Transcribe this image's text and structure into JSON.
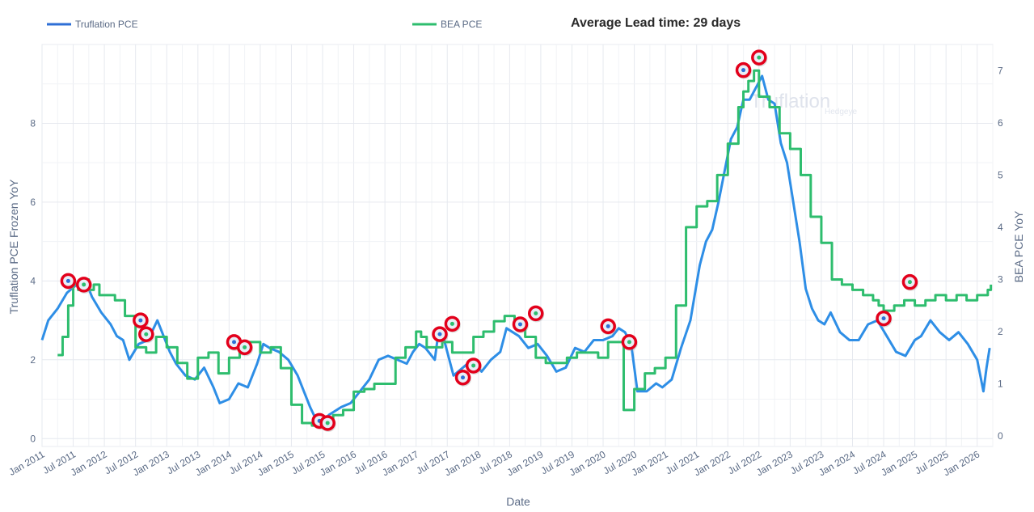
{
  "chart_data": {
    "type": "line",
    "title": "Average Lead time: 29 days",
    "xlabel": "Date",
    "ylabel_left": "Truflation PCE Frozen YoY",
    "ylabel_right": "BEA PCE YoY",
    "ylim_left": [
      -0.2,
      10
    ],
    "ylim_right": [
      -0.2,
      7.5
    ],
    "yticks_left": [
      0,
      2,
      4,
      6,
      8
    ],
    "yticks_right": [
      0,
      1,
      2,
      3,
      4,
      5,
      6,
      7
    ],
    "grid": true,
    "legend_position": "top",
    "watermark": "Truflation",
    "watermark_sub": "Hedgeye",
    "x_ticks": [
      "Jan 2011",
      "Jul 2011",
      "Jan 2012",
      "Jul 2012",
      "Jan 2013",
      "Jul 2013",
      "Jan 2014",
      "Jul 2014",
      "Jan 2015",
      "Jul 2015",
      "Jan 2016",
      "Jul 2016",
      "Jan 2017",
      "Jul 2017",
      "Jan 2018",
      "Jul 2018",
      "Jan 2019",
      "Jul 2019",
      "Jan 2020",
      "Jul 2020",
      "Jan 2021",
      "Jul 2021",
      "Jan 2022",
      "Jul 2022",
      "Jan 2023",
      "Jul 2023",
      "Jan 2024",
      "Jul 2024",
      "Jan 2025",
      "Jul 2025",
      "Jan 2026"
    ],
    "series": [
      {
        "name": "Truflation PCE",
        "color": "#2e8ee6",
        "axis": "left",
        "x": [
          2011.0,
          2011.1,
          2011.25,
          2011.4,
          2011.55,
          2011.7,
          2011.8,
          2011.95,
          2012.1,
          2012.2,
          2012.3,
          2012.4,
          2012.55,
          2012.7,
          2012.85,
          2012.95,
          2013.05,
          2013.15,
          2013.3,
          2013.45,
          2013.6,
          2013.75,
          2013.85,
          2014.0,
          2014.15,
          2014.3,
          2014.45,
          2014.55,
          2014.65,
          2014.8,
          2014.95,
          2015.1,
          2015.2,
          2015.3,
          2015.45,
          2015.6,
          2015.8,
          2015.95,
          2016.1,
          2016.25,
          2016.4,
          2016.55,
          2016.7,
          2016.85,
          2016.95,
          2017.05,
          2017.15,
          2017.3,
          2017.35,
          2017.45,
          2017.6,
          2017.75,
          2017.9,
          2018.05,
          2018.2,
          2018.35,
          2018.45,
          2018.55,
          2018.65,
          2018.8,
          2018.95,
          2019.1,
          2019.25,
          2019.4,
          2019.55,
          2019.7,
          2019.85,
          2020.0,
          2020.15,
          2020.25,
          2020.35,
          2020.45,
          2020.55,
          2020.7,
          2020.85,
          2020.95,
          2021.1,
          2021.25,
          2021.4,
          2021.55,
          2021.65,
          2021.75,
          2021.85,
          2021.95,
          2022.05,
          2022.15,
          2022.25,
          2022.35,
          2022.45,
          2022.55,
          2022.65,
          2022.75,
          2022.85,
          2022.95,
          2023.05,
          2023.15,
          2023.25,
          2023.35,
          2023.45,
          2023.55,
          2023.65,
          2023.8,
          2023.95,
          2024.1,
          2024.25,
          2024.4,
          2024.55,
          2024.7,
          2024.85,
          2025.0,
          2025.1,
          2025.25,
          2025.4,
          2025.55,
          2025.7,
          2025.85,
          2026.0,
          2026.1,
          2026.15,
          2026.2
        ],
        "values": [
          2.5,
          3.0,
          3.3,
          3.7,
          3.9,
          4.0,
          3.6,
          3.2,
          2.9,
          2.6,
          2.5,
          2.0,
          2.4,
          2.5,
          3.0,
          2.6,
          2.2,
          1.9,
          1.6,
          1.5,
          1.8,
          1.3,
          0.9,
          1.0,
          1.4,
          1.3,
          1.9,
          2.4,
          2.3,
          2.2,
          2.0,
          1.6,
          1.2,
          0.8,
          0.3,
          0.6,
          0.8,
          0.9,
          1.2,
          1.5,
          2.0,
          2.1,
          2.0,
          1.9,
          2.2,
          2.4,
          2.3,
          2.0,
          2.6,
          2.5,
          1.6,
          1.8,
          2.0,
          1.7,
          2.0,
          2.2,
          2.8,
          2.7,
          2.6,
          2.3,
          2.4,
          2.1,
          1.7,
          1.8,
          2.3,
          2.2,
          2.5,
          2.5,
          2.6,
          2.8,
          2.7,
          2.4,
          1.2,
          1.2,
          1.4,
          1.3,
          1.5,
          2.3,
          3.0,
          4.4,
          5.0,
          5.3,
          6.0,
          6.8,
          7.6,
          7.9,
          8.6,
          8.6,
          8.9,
          9.2,
          8.6,
          8.5,
          7.5,
          7.0,
          6.0,
          5.0,
          3.8,
          3.3,
          3.0,
          2.9,
          3.2,
          2.7,
          2.5,
          2.5,
          2.9,
          3.0,
          2.6,
          2.2,
          2.1,
          2.5,
          2.6,
          3.0,
          2.7,
          2.5,
          2.7,
          2.4,
          2.0,
          1.2,
          1.8,
          2.3
        ]
      },
      {
        "name": "BEA PCE",
        "color": "#2ebd6e",
        "axis": "right",
        "x": [
          2011.25,
          2011.33,
          2011.42,
          2011.5,
          2011.58,
          2011.67,
          2011.75,
          2011.83,
          2011.92,
          2012.0,
          2012.17,
          2012.33,
          2012.5,
          2012.67,
          2012.83,
          2013.0,
          2013.17,
          2013.33,
          2013.5,
          2013.67,
          2013.83,
          2014.0,
          2014.17,
          2014.33,
          2014.5,
          2014.67,
          2014.83,
          2015.0,
          2015.17,
          2015.33,
          2015.5,
          2015.67,
          2015.83,
          2016.0,
          2016.17,
          2016.33,
          2016.5,
          2016.67,
          2016.83,
          2017.0,
          2017.08,
          2017.17,
          2017.25,
          2017.42,
          2017.58,
          2017.75,
          2017.92,
          2018.08,
          2018.25,
          2018.42,
          2018.58,
          2018.75,
          2018.92,
          2019.08,
          2019.25,
          2019.42,
          2019.58,
          2019.75,
          2019.92,
          2020.08,
          2020.17,
          2020.25,
          2020.33,
          2020.5,
          2020.67,
          2020.83,
          2021.0,
          2021.17,
          2021.33,
          2021.5,
          2021.67,
          2021.83,
          2022.0,
          2022.17,
          2022.25,
          2022.33,
          2022.42,
          2022.5,
          2022.67,
          2022.83,
          2023.0,
          2023.17,
          2023.33,
          2023.5,
          2023.67,
          2023.83,
          2024.0,
          2024.17,
          2024.33,
          2024.42,
          2024.5,
          2024.67,
          2024.83,
          2025.0,
          2025.17,
          2025.33,
          2025.5,
          2025.67,
          2025.83,
          2026.0,
          2026.17,
          2026.22
        ],
        "values": [
          1.55,
          1.9,
          2.5,
          2.9,
          2.8,
          3.0,
          2.8,
          2.9,
          2.7,
          2.7,
          2.6,
          2.3,
          1.7,
          1.6,
          1.9,
          1.7,
          1.4,
          1.1,
          1.5,
          1.6,
          1.2,
          1.5,
          1.8,
          1.8,
          1.6,
          1.7,
          1.3,
          0.6,
          0.25,
          0.2,
          0.25,
          0.4,
          0.5,
          0.85,
          0.9,
          1.0,
          1.0,
          1.5,
          1.7,
          2.0,
          1.9,
          1.7,
          1.7,
          1.8,
          1.6,
          1.6,
          1.9,
          2.0,
          2.2,
          2.3,
          2.2,
          1.9,
          1.5,
          1.4,
          1.4,
          1.5,
          1.6,
          1.6,
          1.5,
          1.8,
          1.8,
          1.8,
          0.5,
          0.9,
          1.2,
          1.3,
          1.5,
          2.5,
          4.0,
          4.4,
          4.5,
          5.0,
          5.6,
          6.3,
          6.6,
          6.8,
          7.0,
          6.5,
          6.3,
          5.8,
          5.5,
          5.0,
          4.2,
          3.7,
          3.0,
          2.9,
          2.8,
          2.7,
          2.6,
          2.5,
          2.4,
          2.5,
          2.6,
          2.5,
          2.6,
          2.7,
          2.6,
          2.7,
          2.6,
          2.7,
          2.8,
          2.9
        ]
      }
    ],
    "markers": [
      {
        "axis": "left",
        "x": 2011.42,
        "y": 4.0
      },
      {
        "axis": "left",
        "x": 2012.58,
        "y": 3.0
      },
      {
        "axis": "left",
        "x": 2014.08,
        "y": 2.45
      },
      {
        "axis": "left",
        "x": 2015.45,
        "y": 0.45
      },
      {
        "axis": "left",
        "x": 2017.38,
        "y": 2.65
      },
      {
        "axis": "left",
        "x": 2017.75,
        "y": 1.55
      },
      {
        "axis": "left",
        "x": 2018.67,
        "y": 2.9
      },
      {
        "axis": "left",
        "x": 2020.08,
        "y": 2.85
      },
      {
        "axis": "left",
        "x": 2022.25,
        "y": 9.35
      },
      {
        "axis": "left",
        "x": 2024.5,
        "y": 3.05
      },
      {
        "axis": "right",
        "x": 2011.67,
        "y": 2.9
      },
      {
        "axis": "right",
        "x": 2012.67,
        "y": 1.95
      },
      {
        "axis": "right",
        "x": 2014.25,
        "y": 1.7
      },
      {
        "axis": "right",
        "x": 2015.58,
        "y": 0.25
      },
      {
        "axis": "right",
        "x": 2017.58,
        "y": 2.15
      },
      {
        "axis": "right",
        "x": 2017.92,
        "y": 1.35
      },
      {
        "axis": "right",
        "x": 2018.92,
        "y": 2.35
      },
      {
        "axis": "right",
        "x": 2020.42,
        "y": 1.8
      },
      {
        "axis": "right",
        "x": 2022.5,
        "y": 7.25
      },
      {
        "axis": "right",
        "x": 2024.92,
        "y": 2.95
      }
    ]
  }
}
